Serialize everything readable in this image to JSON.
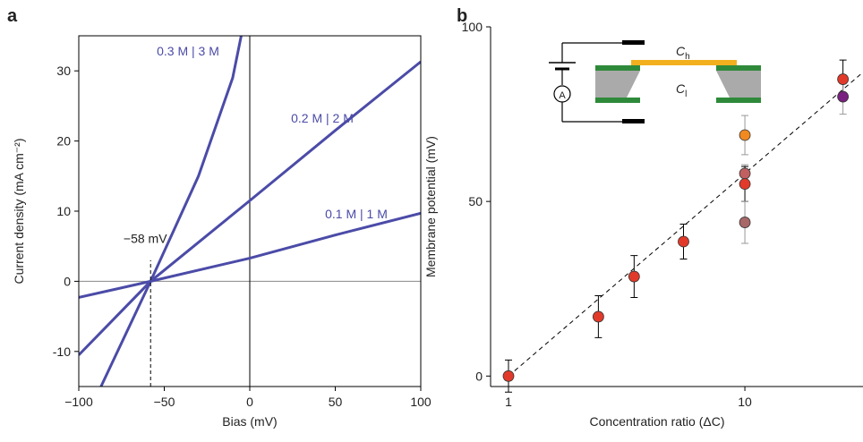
{
  "chart_data": [
    {
      "type": "line",
      "panel": "a",
      "x_label": "Bias (mV)",
      "y_label": "Current density (mA cm⁻²)",
      "xlim": [
        -100,
        100
      ],
      "ylim": [
        -15,
        35
      ],
      "xticks": [
        {
          "value": -100,
          "label": "−100"
        },
        {
          "value": -50,
          "label": "−50"
        },
        0,
        50,
        100
      ],
      "yticks": [
        -10,
        0,
        10,
        20,
        30
      ],
      "zero_lines": true,
      "annotation": {
        "text": "−58 mV",
        "x": -58
      },
      "series": [
        {
          "name": "0.3 M | 3 M",
          "color": "#4b4ba8",
          "x": [
            -87,
            -58,
            -30,
            -10,
            -5
          ],
          "values": [
            -15,
            0,
            15,
            29,
            35
          ]
        },
        {
          "name": "0.2 M | 2 M",
          "color": "#4b4ba8",
          "x": [
            -100,
            -58,
            0,
            50,
            100
          ],
          "values": [
            -10.5,
            0,
            11.5,
            21.5,
            31.3
          ]
        },
        {
          "name": "0.1 M | 1 M",
          "color": "#4b4ba8",
          "x": [
            -100,
            -58,
            0,
            50,
            100
          ],
          "values": [
            -2.3,
            0,
            3.3,
            6.6,
            9.7
          ]
        }
      ]
    },
    {
      "type": "scatter",
      "panel": "b",
      "x_label": "Concentration ratio (ΔC)",
      "y_label": "Membrane potential (mV)",
      "log_x": true,
      "xlim": [
        0.84,
        31.6
      ],
      "ylim": [
        -3,
        100
      ],
      "xticks": [
        1,
        10
      ],
      "yticks": [
        0,
        50,
        100
      ],
      "x": [
        1,
        2.4,
        3.4,
        5.5,
        10,
        10,
        10,
        10,
        26,
        26
      ],
      "values": [
        0,
        17,
        28.5,
        38.5,
        69,
        58,
        55,
        44,
        85,
        80
      ],
      "errors": [
        4.6,
        6,
        6,
        5,
        5.6,
        2.5,
        5,
        6,
        5.5,
        5
      ],
      "colors": [
        "#e23a2a",
        "#e23a2a",
        "#e23a2a",
        "#e23a2a",
        "#f08a20",
        "#c06060",
        "#e23a2a",
        "#a86868",
        "#e23a2a",
        "#7a2080"
      ],
      "fit_line": {
        "x": [
          1,
          31.6
        ],
        "values": [
          0,
          87
        ]
      },
      "inset": {
        "hot": {
          "symbol": "C",
          "subscript": "h"
        },
        "low": {
          "symbol": "C",
          "subscript": "l"
        },
        "meter": "A"
      }
    }
  ]
}
